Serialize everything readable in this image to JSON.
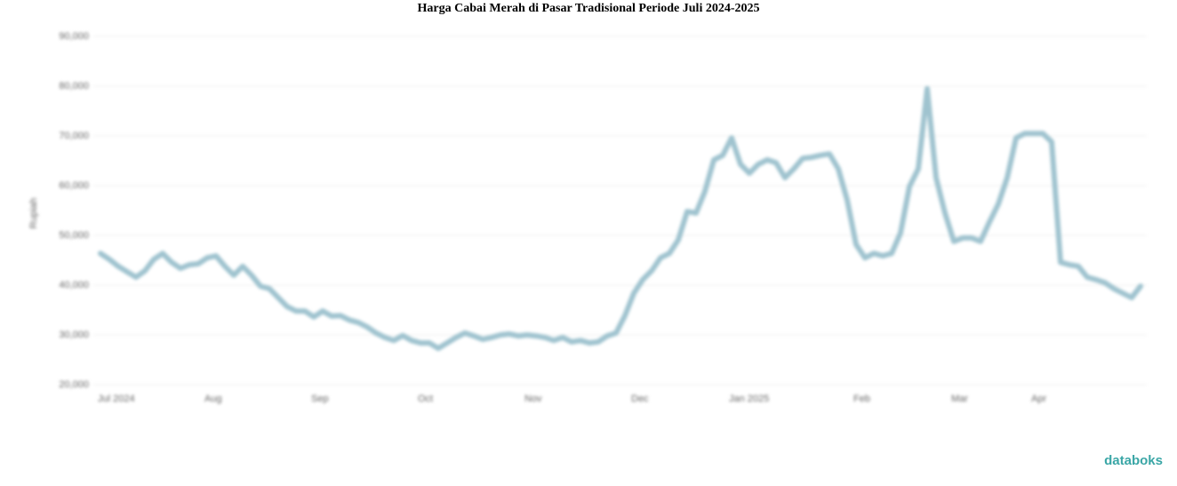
{
  "chart_data": {
    "type": "line",
    "title": "Harga Cabai Merah di Pasar Tradisional Periode Juli 2024-2025",
    "y_label": "Rupiah",
    "source_logo": "databoks",
    "categories": [
      "Jul 2024",
      null,
      null,
      null,
      null,
      null,
      null,
      null,
      null,
      null,
      null,
      null,
      "Aug",
      null,
      null,
      null,
      null,
      null,
      null,
      null,
      null,
      null,
      null,
      null,
      "Sep",
      null,
      null,
      null,
      null,
      null,
      null,
      null,
      null,
      null,
      null,
      null,
      "Oct",
      null,
      null,
      null,
      null,
      null,
      null,
      null,
      null,
      null,
      null,
      null,
      "Nov",
      null,
      null,
      null,
      null,
      null,
      null,
      null,
      null,
      null,
      null,
      null,
      "Dec",
      null,
      null,
      null,
      null,
      null,
      null,
      null,
      null,
      null,
      null,
      "Jan 2025",
      null,
      null,
      null,
      null,
      null,
      null,
      null,
      null,
      null,
      null,
      null,
      null,
      null,
      "Feb",
      null,
      null,
      null,
      null,
      null,
      null,
      null,
      null,
      null,
      null,
      "Mar",
      null,
      null,
      null,
      null,
      null,
      null,
      null,
      null,
      "Apr",
      null,
      null,
      null,
      null,
      null,
      null,
      null,
      null,
      null,
      null,
      null,
      null
    ],
    "series": [
      {
        "name": "Harga",
        "color": "#9fc3cf",
        "values": [
          46400,
          45200,
          43800,
          42700,
          41600,
          42900,
          45200,
          46400,
          44600,
          43400,
          44100,
          44300,
          45500,
          45900,
          43800,
          42000,
          43800,
          42000,
          39800,
          39300,
          37500,
          35700,
          34800,
          34800,
          33600,
          34800,
          33800,
          33900,
          33000,
          32500,
          31600,
          30400,
          29500,
          28900,
          29900,
          28900,
          28400,
          28400,
          27300,
          28400,
          29500,
          30400,
          29800,
          29100,
          29500,
          30000,
          30200,
          29800,
          30000,
          29800,
          29500,
          28900,
          29500,
          28600,
          28900,
          28400,
          28600,
          29800,
          30400,
          33900,
          38400,
          41100,
          42900,
          45500,
          46400,
          49100,
          54800,
          54500,
          58900,
          65200,
          66100,
          69600,
          64300,
          62500,
          64300,
          65200,
          64600,
          61600,
          63400,
          65500,
          65700,
          66100,
          66400,
          63400,
          57100,
          48200,
          45500,
          46400,
          45900,
          46400,
          50500,
          59800,
          63400,
          79500,
          61600,
          54500,
          48800,
          49500,
          49500,
          48800,
          52700,
          56300,
          61600,
          69600,
          70500,
          70500,
          70500,
          68800,
          44600,
          44100,
          43800,
          41600,
          41100,
          40500,
          39300,
          38400,
          37500,
          39800
        ]
      }
    ],
    "ylim": [
      20000,
      90000
    ],
    "yticks": [
      {
        "value": 20000,
        "label": "20,000"
      },
      {
        "value": 30000,
        "label": "30,000"
      },
      {
        "value": 40000,
        "label": "40,000"
      },
      {
        "value": 50000,
        "label": "50,000"
      },
      {
        "value": 60000,
        "label": "60,000"
      },
      {
        "value": 70000,
        "label": "70,000"
      },
      {
        "value": 80000,
        "label": "80,000"
      },
      {
        "value": 90000,
        "label": "90,000"
      }
    ],
    "grid": true
  }
}
